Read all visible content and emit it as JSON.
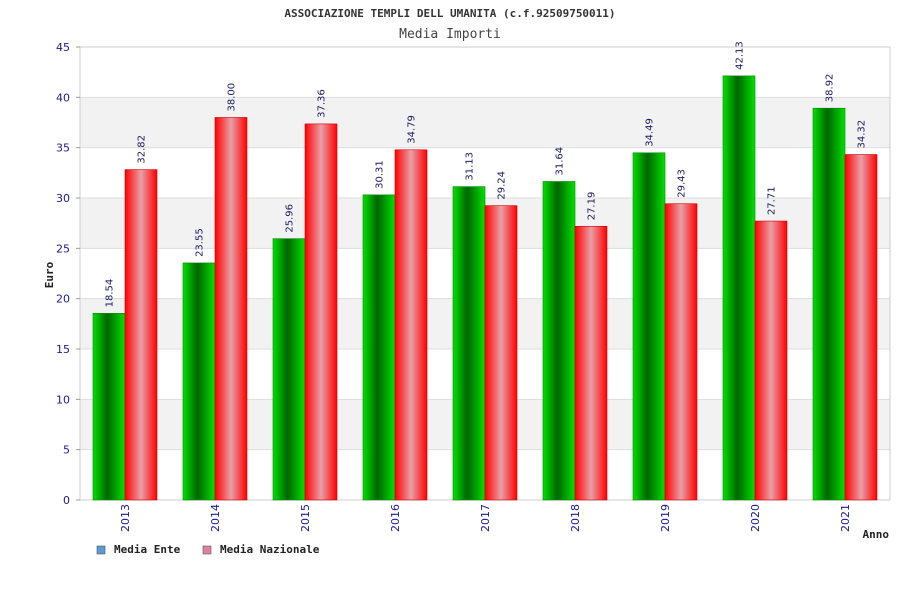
{
  "chart_data": {
    "type": "bar",
    "title": "ASSOCIAZIONE TEMPLI DELL UMANITA (c.f.92509750011)",
    "subtitle": "Media Importi",
    "xlabel": "Anno",
    "ylabel": "Euro",
    "ylim": [
      0,
      45
    ],
    "yticks": [
      0,
      5,
      10,
      15,
      20,
      25,
      30,
      35,
      40,
      45
    ],
    "categories": [
      "2013",
      "2014",
      "2015",
      "2016",
      "2017",
      "2018",
      "2019",
      "2020",
      "2021"
    ],
    "series": [
      {
        "name": "Media Ente",
        "color": "#00b400",
        "values": [
          18.54,
          23.55,
          25.96,
          30.31,
          31.13,
          31.64,
          34.49,
          42.13,
          38.92
        ],
        "labels": [
          "18.54",
          "23.55",
          "25.96",
          "30.31",
          "31.13",
          "31.64",
          "34.49",
          "42.13",
          "38.92"
        ]
      },
      {
        "name": "Media Nazionale",
        "color": "#ff1a1a",
        "values": [
          32.82,
          38.0,
          37.36,
          34.79,
          29.24,
          27.19,
          29.43,
          27.71,
          34.32
        ],
        "labels": [
          "32.82",
          "38.00",
          "37.36",
          "34.79",
          "29.24",
          "27.19",
          "29.43",
          "27.71",
          "34.32"
        ]
      }
    ],
    "legend": [
      {
        "label": "Media Ente",
        "color": "#5b9bd5"
      },
      {
        "label": "Media Nazionale",
        "color": "#e080a0"
      }
    ],
    "legend_position": "bottom-left",
    "grid": true
  }
}
